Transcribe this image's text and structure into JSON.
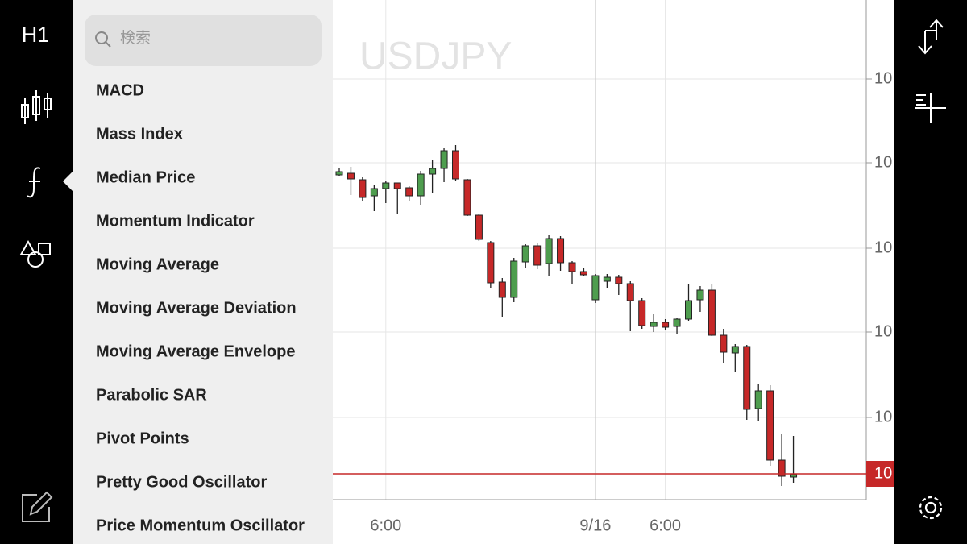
{
  "sidebar": {
    "timeframe": "H1"
  },
  "menu": {
    "search_placeholder": "検索",
    "items": [
      "MACD",
      "Mass Index",
      "Median Price",
      "Momentum Indicator",
      "Moving Average",
      "Moving Average Deviation",
      "Moving Average Envelope",
      "Parabolic SAR",
      "Pivot Points",
      "Pretty Good Oscillator",
      "Price Momentum Oscillator"
    ]
  },
  "chart_data": {
    "type": "candlestick",
    "title": "USDJPY",
    "categories": [
      null,
      null,
      null,
      null,
      "6:00",
      null,
      null,
      null,
      null,
      null,
      null,
      null,
      null,
      null,
      null,
      null,
      null,
      null,
      null,
      null,
      null,
      null,
      "9/16",
      null,
      null,
      null,
      null,
      null,
      "6:00",
      null,
      null,
      null,
      null,
      null,
      null,
      null,
      null,
      null,
      null,
      null
    ],
    "open": [
      403,
      405,
      397,
      377,
      386,
      393,
      387,
      377,
      404,
      411,
      433,
      397,
      353,
      319,
      270,
      251,
      295,
      315,
      293,
      324,
      294,
      283,
      248,
      271,
      276,
      268,
      247,
      215,
      220,
      215,
      224,
      248,
      260,
      204,
      182,
      190,
      113,
      135,
      49,
      28
    ],
    "high": [
      411,
      413,
      400,
      391,
      395,
      393,
      389,
      408,
      421,
      436,
      440,
      398,
      355,
      321,
      275,
      300,
      317,
      318,
      328,
      327,
      296,
      287,
      280,
      280,
      279,
      271,
      250,
      230,
      224,
      226,
      267,
      265,
      267,
      212,
      193,
      192,
      144,
      142,
      82,
      79
    ],
    "low": [
      401,
      378,
      370,
      358,
      368,
      355,
      370,
      365,
      380,
      394,
      395,
      352,
      321,
      263,
      227,
      245,
      288,
      286,
      278,
      284,
      267,
      278,
      244,
      263,
      254,
      209,
      212,
      208,
      211,
      206,
      222,
      233,
      203,
      170,
      158,
      99,
      97,
      42,
      17,
      21
    ],
    "close": [
      407,
      398,
      375,
      386,
      393,
      386,
      377,
      404,
      411,
      433,
      398,
      353,
      323,
      269,
      251,
      296,
      315,
      291,
      324,
      294,
      283,
      279,
      278,
      276,
      268,
      247,
      216,
      220,
      214,
      224,
      247,
      260,
      204,
      183,
      190,
      112,
      135,
      49,
      29,
      31
    ],
    "up_color": "#4e9d4e",
    "down_color": "#c62828",
    "ylim": [
      0,
      620
    ],
    "yticks": [
      {
        "value": 102,
        "label": "10"
      },
      {
        "value": 208,
        "label": "10"
      },
      {
        "value": 312,
        "label": "10"
      },
      {
        "value": 418,
        "label": "10"
      },
      {
        "value": 522,
        "label": "10"
      }
    ],
    "current_price": {
      "value": 32,
      "label": "10"
    },
    "grid": true
  }
}
